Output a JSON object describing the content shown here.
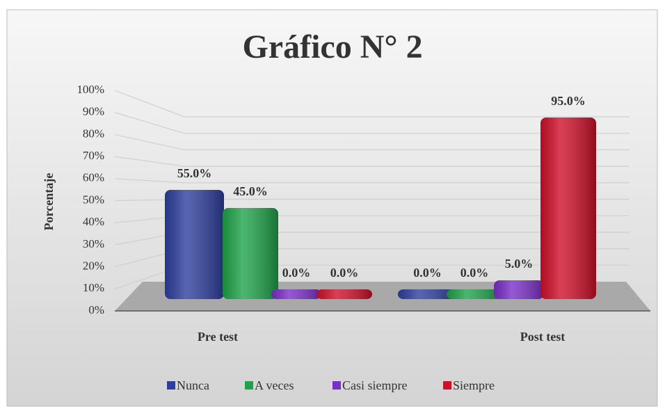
{
  "chart_data": {
    "type": "bar",
    "title": "Gráfico N° 2",
    "y_label": "Porcentaje",
    "categories": [
      "Pre test",
      "Post test"
    ],
    "series": [
      {
        "name": "Nunca",
        "color": "#2e3f9e",
        "values": [
          55,
          0
        ],
        "value_labels": [
          "55.0%",
          "0.0%"
        ]
      },
      {
        "name": "A veces",
        "color": "#1fa34a",
        "values": [
          45,
          0
        ],
        "value_labels": [
          "45.0%",
          "0.0%"
        ]
      },
      {
        "name": "Casi siempre",
        "color": "#7a2fc8",
        "values": [
          0,
          5
        ],
        "value_labels": [
          "0.0%",
          "5.0%"
        ]
      },
      {
        "name": "Siempre",
        "color": "#d0102a",
        "values": [
          0,
          95
        ],
        "value_labels": [
          "0.0%",
          "95.0%"
        ]
      }
    ],
    "ylim": [
      0,
      100
    ],
    "yticks": [
      {
        "value": 0,
        "label": "0%"
      },
      {
        "value": 10,
        "label": "10%"
      },
      {
        "value": 20,
        "label": "20%"
      },
      {
        "value": 30,
        "label": "30%"
      },
      {
        "value": 40,
        "label": "40%"
      },
      {
        "value": 50,
        "label": "50%"
      },
      {
        "value": 60,
        "label": "60%"
      },
      {
        "value": 70,
        "label": "70%"
      },
      {
        "value": 80,
        "label": "80%"
      },
      {
        "value": 90,
        "label": "90%"
      },
      {
        "value": 100,
        "label": "100%"
      }
    ],
    "grid": true,
    "legend": "bottom"
  }
}
